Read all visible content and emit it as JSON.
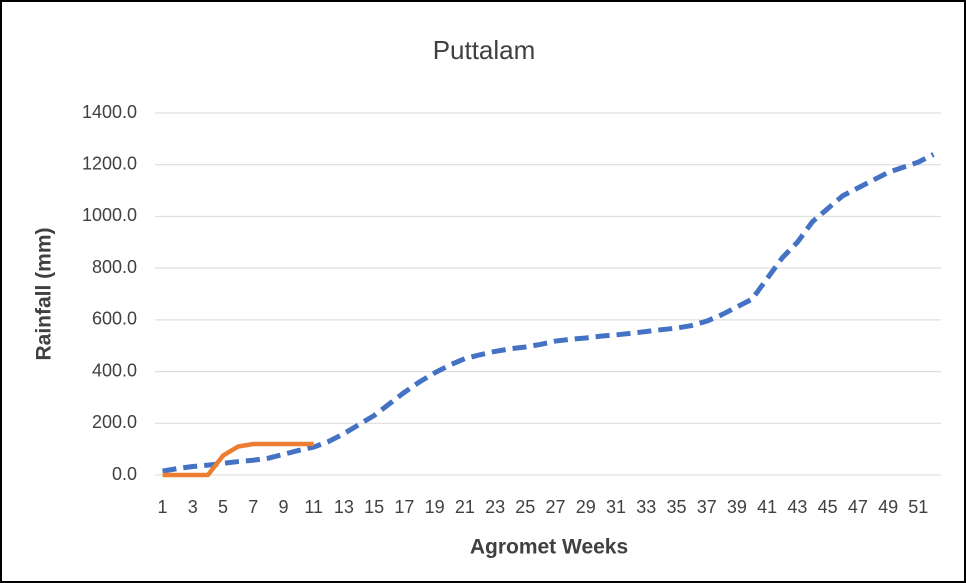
{
  "chart_data": {
    "type": "line",
    "title": "Puttalam",
    "x_label": "Agromet Weeks",
    "y_label": "Rainfall (mm)",
    "categories": [
      1,
      null,
      3,
      null,
      5,
      null,
      7,
      null,
      9,
      null,
      11,
      null,
      13,
      null,
      15,
      null,
      17,
      null,
      19,
      null,
      21,
      null,
      23,
      null,
      25,
      null,
      27,
      null,
      29,
      null,
      31,
      null,
      33,
      null,
      35,
      null,
      37,
      null,
      39,
      null,
      41,
      null,
      43,
      null,
      45,
      null,
      47,
      null,
      49,
      null,
      51,
      null
    ],
    "series": [
      {
        "color": "#4472c4",
        "dashed": true,
        "values": [
          15,
          25,
          33,
          38,
          45,
          52,
          57,
          65,
          80,
          95,
          108,
          130,
          160,
          195,
          230,
          275,
          320,
          360,
          395,
          425,
          450,
          465,
          478,
          488,
          495,
          505,
          518,
          525,
          530,
          537,
          542,
          548,
          555,
          562,
          568,
          578,
          595,
          620,
          650,
          680,
          760,
          840,
          900,
          980,
          1030,
          1080,
          1110,
          1140,
          1170,
          1190,
          1210,
          1240
        ]
      },
      {
        "color": "#ed7d31",
        "dashed": false,
        "values": [
          0,
          0,
          0,
          0,
          75,
          110,
          120,
          120,
          120,
          120,
          120,
          null,
          null,
          null,
          null,
          null,
          null,
          null,
          null,
          null,
          null,
          null,
          null,
          null,
          null,
          null,
          null,
          null,
          null,
          null,
          null,
          null,
          null,
          null,
          null,
          null,
          null,
          null,
          null,
          null,
          null,
          null,
          null,
          null,
          null,
          null,
          null,
          null,
          null,
          null,
          null,
          null
        ]
      }
    ],
    "ylim": [
      0,
      1400
    ],
    "yticks": [
      {
        "value": 0,
        "label": "0.0"
      },
      {
        "value": 200,
        "label": "200.0"
      },
      {
        "value": 400,
        "label": "400.0"
      },
      {
        "value": 600,
        "label": "600.0"
      },
      {
        "value": 800,
        "label": "800.0"
      },
      {
        "value": 1000,
        "label": "1000.0"
      },
      {
        "value": 1200,
        "label": "1200.0"
      },
      {
        "value": 1400,
        "label": "1400.0"
      }
    ],
    "grid": true
  }
}
